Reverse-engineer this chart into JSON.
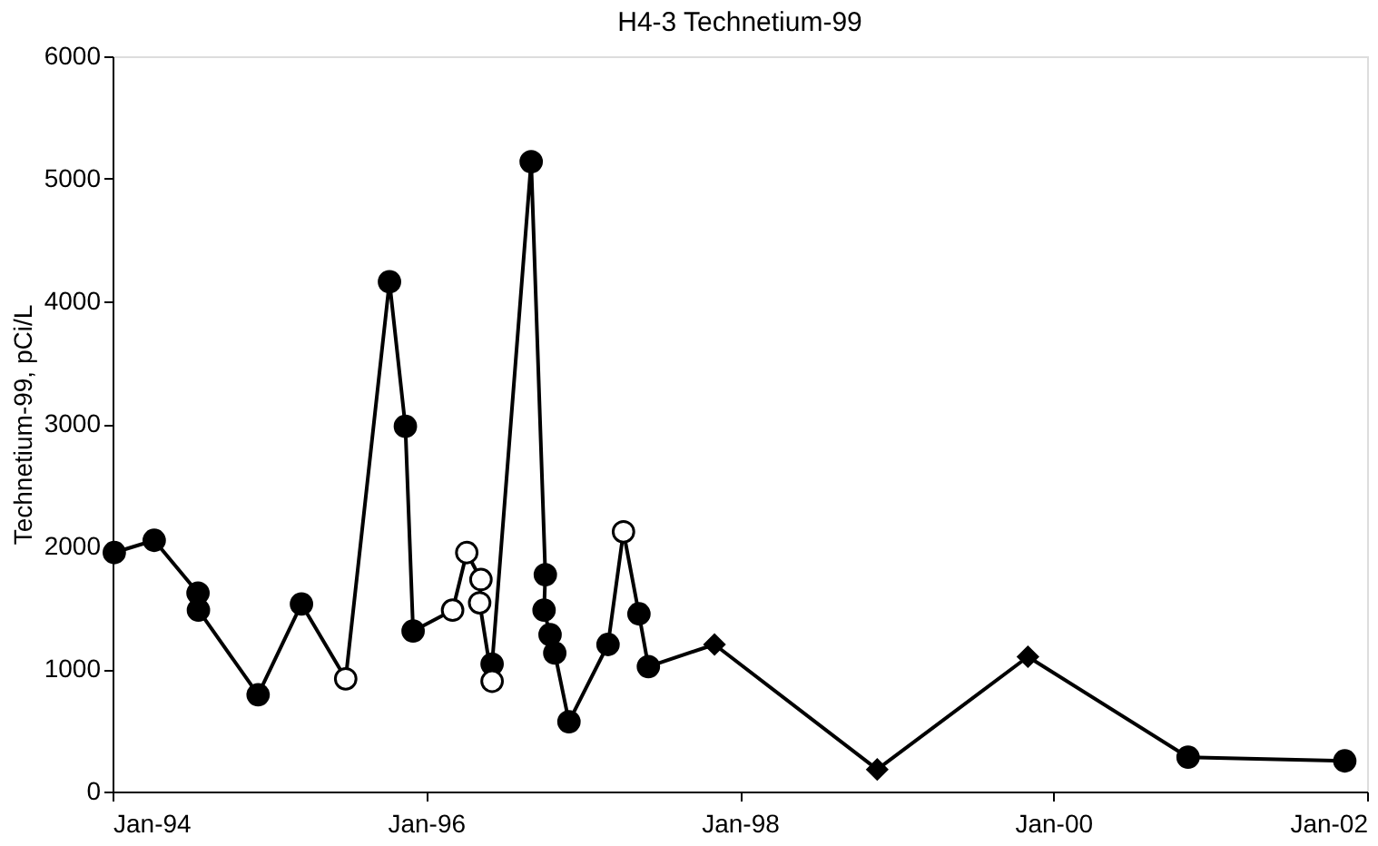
{
  "chart_data": {
    "type": "line",
    "title": "H4-3 Technetium-99",
    "ylabel": "Technetium-99, pCi/L",
    "xlim": [
      "1994-01-01",
      "2002-01-01"
    ],
    "xticks": [
      {
        "value": "1994-01-01",
        "label": "Jan-94"
      },
      {
        "value": "1996-01-01",
        "label": "Jan-96"
      },
      {
        "value": "1998-01-01",
        "label": "Jan-98"
      },
      {
        "value": "2000-01-01",
        "label": "Jan-00"
      },
      {
        "value": "2002-01-01",
        "label": "Jan-02"
      }
    ],
    "ylim": [
      0,
      6000
    ],
    "yticks": [
      0,
      1000,
      2000,
      3000,
      4000,
      5000,
      6000
    ],
    "grid": false,
    "series": [
      {
        "marker": "none",
        "line_style": "solid",
        "color": "#000000",
        "x": [
          "1994-01-05",
          "1994-04-08",
          "1994-07-19",
          "1994-07-20",
          "1994-12-06",
          "1995-03-17",
          "1995-06-28",
          "1995-10-08",
          "1995-11-14",
          "1995-12-02",
          "1996-03-03",
          "1996-04-05",
          "1996-05-08",
          "1996-05-05",
          "1996-06-03",
          "1996-06-03",
          "1996-09-02",
          "1996-10-05",
          "1996-10-02",
          "1996-10-16",
          "1996-10-27",
          "1996-11-29",
          "1997-02-28",
          "1997-04-05",
          "1997-05-11",
          "1997-06-02",
          "1997-11-03",
          "1998-11-17",
          "1999-11-03",
          "2000-11-10",
          "2001-11-10"
        ],
        "values": [
          1950,
          2050,
          1620,
          1480,
          790,
          1530,
          920,
          4160,
          2980,
          1310,
          1480,
          1950,
          1730,
          1540,
          900,
          1040,
          5140,
          1770,
          1480,
          1280,
          1130,
          570,
          1200,
          2120,
          1450,
          1020,
          1200,
          180,
          1100,
          280,
          250
        ]
      },
      {
        "type": "scatter",
        "marker": "circle",
        "color": "#000000",
        "x": [
          "1994-01-05",
          "1994-04-08",
          "1994-07-19",
          "1994-07-20",
          "1994-12-06",
          "1995-03-17",
          "1995-10-08",
          "1995-11-14",
          "1995-12-02",
          "1996-06-03",
          "1996-09-02",
          "1996-10-05",
          "1996-10-02",
          "1996-10-16",
          "1996-10-27",
          "1996-11-29",
          "1997-02-28",
          "1997-05-11",
          "1997-06-02",
          "2000-11-10",
          "2001-11-10"
        ],
        "values": [
          1950,
          2050,
          1620,
          1480,
          790,
          1530,
          4160,
          2980,
          1310,
          1040,
          5140,
          1770,
          1480,
          1280,
          1130,
          570,
          1200,
          1450,
          1020,
          280,
          250
        ]
      },
      {
        "type": "scatter",
        "marker": "circle",
        "color": "#ffffff",
        "x": [
          "1995-06-28",
          "1996-03-03",
          "1996-04-05",
          "1996-05-08",
          "1996-05-05",
          "1996-06-03",
          "1997-04-05"
        ],
        "values": [
          920,
          1480,
          1950,
          1730,
          1540,
          900,
          2120
        ]
      },
      {
        "type": "scatter",
        "marker": "diamond",
        "color": "#000000",
        "x": [
          "1997-11-03",
          "1998-11-17",
          "1999-11-03"
        ],
        "values": [
          1200,
          180,
          1100
        ]
      }
    ]
  }
}
